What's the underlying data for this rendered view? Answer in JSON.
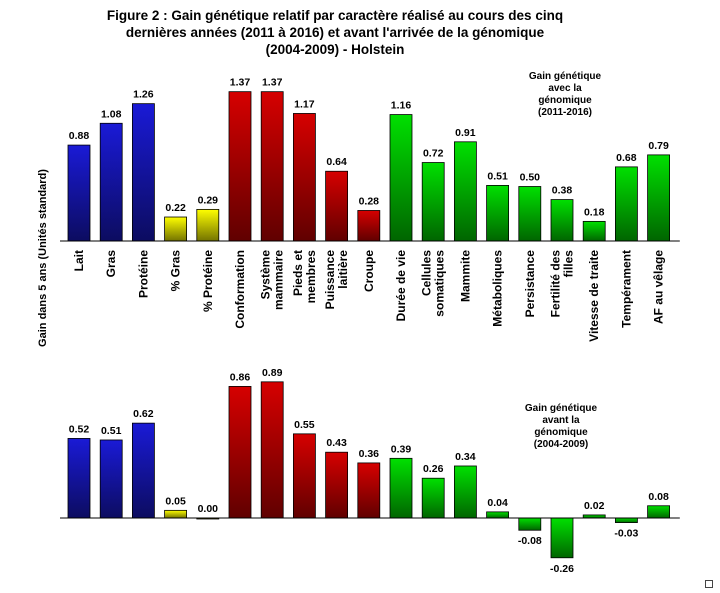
{
  "title_lines": [
    "Figure 2 : Gain génétique relatif par caractère réalisé au cours des cinq",
    "dernières années (2011 à 2016) et avant l'arrivée de la génomique",
    "(2004-2009) - Holstein"
  ],
  "ylabel": "Gain dans 5 ans (Unités standard)",
  "colors": {
    "production": "#1a1ad6",
    "gras_pct": "#ffff00",
    "conformation": "#d60000",
    "sante": "#00e000"
  },
  "chart_data": [
    {
      "type": "bar",
      "annotation": [
        "Gain génétique",
        "avec la",
        "génomique",
        "(2011-2016)"
      ],
      "categories": [
        [
          "Lait"
        ],
        [
          "Gras"
        ],
        [
          "Protéine"
        ],
        [
          "% Gras"
        ],
        [
          "% Protéine"
        ],
        [
          "Conformation"
        ],
        [
          "Système",
          "mammaire"
        ],
        [
          "Pieds et",
          "membres"
        ],
        [
          "Puissance",
          "laitière"
        ],
        [
          "Croupe"
        ],
        [
          "Durée de vie"
        ],
        [
          "Cellules",
          "somatiques"
        ],
        [
          "Mammite"
        ],
        [
          "Métaboliques"
        ],
        [
          "Persistance"
        ],
        [
          "Fertilité des",
          "filles"
        ],
        [
          "Vitesse de traite"
        ],
        [
          "Tempérament"
        ],
        [
          "AF au vêlage"
        ]
      ],
      "values": [
        0.88,
        1.08,
        1.26,
        0.22,
        0.29,
        1.37,
        1.37,
        1.17,
        0.64,
        0.28,
        1.16,
        0.72,
        0.91,
        0.51,
        0.5,
        0.38,
        0.18,
        0.68,
        0.79
      ],
      "value_labels": [
        "0.88",
        "1.08",
        "1.26",
        "0.22",
        "0.29",
        "1.37",
        "1.37",
        "1.17",
        "0.64",
        "0.28",
        "1.16",
        "0.72",
        "0.91",
        "0.51",
        "0.50",
        "0.38",
        "0.18",
        "0.68",
        "0.79"
      ],
      "groups": [
        "production",
        "production",
        "production",
        "gras_pct",
        "gras_pct",
        "conformation",
        "conformation",
        "conformation",
        "conformation",
        "conformation",
        "sante",
        "sante",
        "sante",
        "sante",
        "sante",
        "sante",
        "sante",
        "sante",
        "sante"
      ]
    },
    {
      "type": "bar",
      "annotation": [
        "Gain génétique",
        "avant la",
        "génomique",
        "(2004-2009)"
      ],
      "values": [
        0.52,
        0.51,
        0.62,
        0.05,
        0.0,
        0.86,
        0.89,
        0.55,
        0.43,
        0.36,
        0.39,
        0.26,
        0.34,
        0.04,
        -0.08,
        -0.26,
        0.02,
        -0.03,
        0.08
      ],
      "value_labels": [
        "0.52",
        "0.51",
        "0.62",
        "0.05",
        "0.00",
        "0.86",
        "0.89",
        "0.55",
        "0.43",
        "0.36",
        "0.39",
        "0.26",
        "0.34",
        "0.04",
        "-0.08",
        "-0.26",
        "0.02",
        "-0.03",
        "0.08"
      ],
      "groups": [
        "production",
        "production",
        "production",
        "gras_pct",
        "gras_pct",
        "conformation",
        "conformation",
        "conformation",
        "conformation",
        "conformation",
        "sante",
        "sante",
        "sante",
        "sante",
        "sante",
        "sante",
        "sante",
        "sante",
        "sante"
      ]
    }
  ]
}
